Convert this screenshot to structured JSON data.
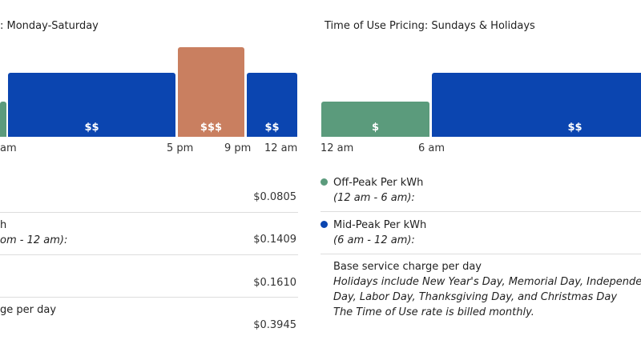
{
  "colors": {
    "off_peak": "#5b9b7c",
    "mid_peak": "#0b45b0",
    "on_peak": "#c97f60"
  },
  "left_panel": {
    "title": ": Monday-Saturday",
    "bars": [
      {
        "label": "",
        "color": "off_peak"
      },
      {
        "label": "$$",
        "color": "mid_peak"
      },
      {
        "label": "$$$",
        "color": "on_peak"
      },
      {
        "label": "$$",
        "color": "mid_peak"
      }
    ],
    "ticks": [
      "am",
      "5 pm",
      "9 pm",
      "12 am"
    ],
    "rows": [
      {
        "lines": [
          ""
        ],
        "price": "$0.0805"
      },
      {
        "lines": [
          "h",
          "om - 12 am):"
        ],
        "price": "$0.1409"
      },
      {
        "lines": [
          ""
        ],
        "price": "$0.1610"
      },
      {
        "lines": [
          "ge per day"
        ],
        "price": "$0.3945"
      }
    ]
  },
  "right_panel": {
    "title": "Time of Use Pricing: Sundays & Holidays",
    "bars": [
      {
        "label": "$",
        "color": "off_peak"
      },
      {
        "label": "$$",
        "color": "mid_peak"
      }
    ],
    "ticks": [
      "12 am",
      "6 am"
    ],
    "rows": [
      {
        "name": "Off-Peak Per kWh",
        "range": "(12 am - 6 am):",
        "dot": "off_peak"
      },
      {
        "name": "Mid-Peak Per kWh",
        "range": "(6 am - 12 am):",
        "dot": "mid_peak"
      }
    ],
    "base_charge": "Base service charge per day",
    "notes": [
      "Holidays include New Year's Day, Memorial Day, Independen",
      "Day, Labor Day, Thanksgiving Day, and Christmas Day",
      "The Time of Use rate is billed monthly."
    ]
  }
}
